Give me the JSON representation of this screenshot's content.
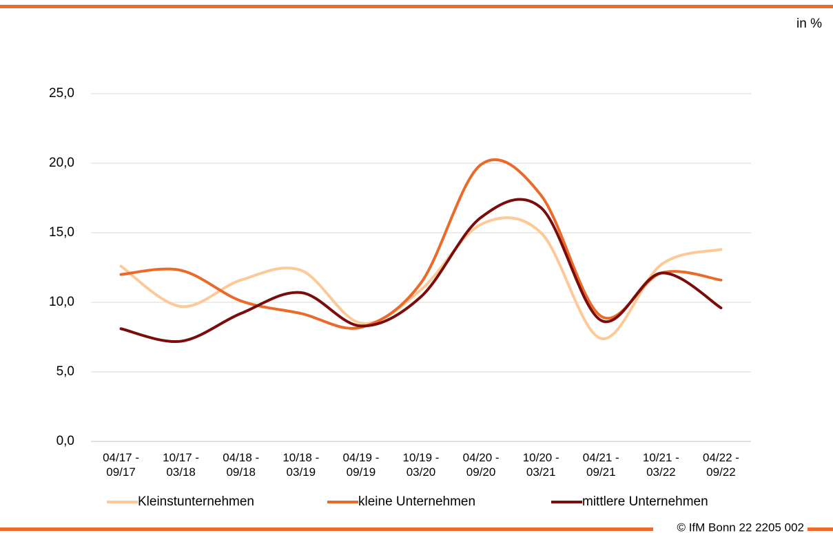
{
  "chart_data": {
    "type": "line",
    "unit_label": "in %",
    "source": "© IfM Bonn 22 2205 002",
    "categories": [
      "04/17 - 09/17",
      "10/17 - 03/18",
      "04/18 - 09/18",
      "10/18 - 03/19",
      "04/19 - 09/19",
      "10/19 - 03/20",
      "04/20 - 09/20",
      "10/20 - 03/21",
      "04/21 - 09/21",
      "10/21 - 03/22",
      "04/22 - 09/22"
    ],
    "series": [
      {
        "name": "Kleinstunternehmen",
        "color": "#fdc996",
        "values": [
          12.6,
          9.7,
          11.6,
          12.3,
          8.5,
          10.9,
          15.6,
          15.0,
          7.4,
          12.7,
          13.8
        ]
      },
      {
        "name": "kleine Unternehmen",
        "color": "#ea6a2a",
        "values": [
          12.0,
          12.3,
          10.1,
          9.2,
          8.2,
          11.4,
          19.9,
          17.7,
          9.0,
          12.1,
          11.6
        ]
      },
      {
        "name": "mittlere Unternehmen",
        "color": "#7b0c0c",
        "values": [
          8.1,
          7.2,
          9.2,
          10.7,
          8.3,
          10.4,
          16.1,
          16.8,
          8.7,
          12.1,
          9.6
        ]
      }
    ],
    "ylim": [
      0,
      25
    ],
    "yticks": [
      {
        "value": 0,
        "label": "0,0"
      },
      {
        "value": 5,
        "label": "5,0"
      },
      {
        "value": 10,
        "label": "10,0"
      },
      {
        "value": 15,
        "label": "15,0"
      },
      {
        "value": 20,
        "label": "20,0"
      },
      {
        "value": 25,
        "label": "25,0"
      }
    ],
    "grid": true
  }
}
